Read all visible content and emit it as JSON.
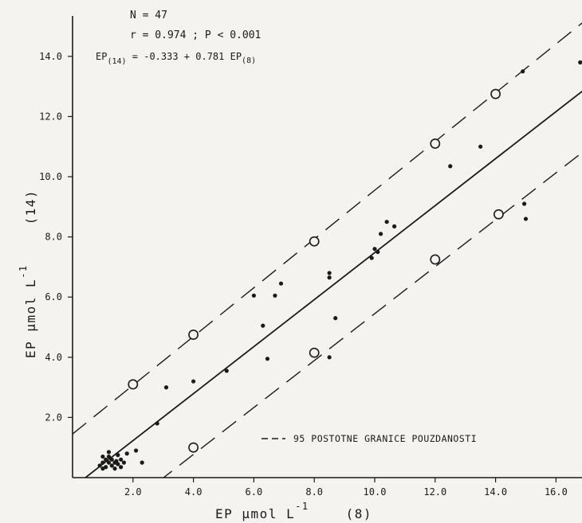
{
  "chart_data": {
    "type": "scatter",
    "annotations": {
      "n": "N = 47",
      "stats": "r = 0.974  ;  P < 0.001",
      "equation_lhs": "EP",
      "equation_lhs_sub": "(14)",
      "equation_rhs": " = -0.333 + 0.781  EP",
      "equation_rhs_sub": "(8)"
    },
    "xlabel": "EP  µmol   L",
    "xlabel_sup": "-1",
    "xlabel_suffix": "(8)",
    "ylabel": "EP  µmol   L",
    "ylabel_sup": "-1",
    "ylabel_suffix": "(14)",
    "xlim": [
      0,
      17
    ],
    "ylim": [
      0,
      15
    ],
    "x_ticks": [
      "2.0",
      "4.0",
      "6.0",
      "8.0",
      "10.0",
      "12.0",
      "14.0",
      "16.0"
    ],
    "y_ticks": [
      "2.0",
      "4.0",
      "6.0",
      "8.0",
      "10.0",
      "12.0",
      "14.0"
    ],
    "legend": {
      "label": "95  POSTOTNE  GRANICE  POUZDANOSTI",
      "placement": "bottom-right"
    },
    "regression": {
      "intercept": -0.333,
      "slope": 0.781
    },
    "confidence_lines": [
      {
        "intercept": 1.45,
        "slope": 0.81
      },
      {
        "intercept": -2.35,
        "slope": 0.78
      }
    ],
    "points": [
      [
        0.9,
        0.4
      ],
      [
        1.0,
        0.5
      ],
      [
        1.0,
        0.3
      ],
      [
        1.1,
        0.6
      ],
      [
        1.1,
        0.35
      ],
      [
        1.2,
        0.5
      ],
      [
        1.2,
        0.7
      ],
      [
        1.3,
        0.4
      ],
      [
        1.3,
        0.6
      ],
      [
        1.4,
        0.5
      ],
      [
        1.4,
        0.3
      ],
      [
        1.5,
        0.75
      ],
      [
        1.5,
        0.45
      ],
      [
        1.6,
        0.6
      ],
      [
        1.6,
        0.35
      ],
      [
        1.7,
        0.5
      ],
      [
        1.0,
        0.7
      ],
      [
        1.2,
        0.85
      ],
      [
        1.8,
        0.8
      ],
      [
        2.1,
        0.9
      ],
      [
        2.3,
        0.5
      ],
      [
        2.8,
        1.8
      ],
      [
        3.1,
        3.0
      ],
      [
        4.0,
        3.2
      ],
      [
        5.1,
        3.55
      ],
      [
        6.0,
        6.05
      ],
      [
        6.3,
        5.05
      ],
      [
        6.45,
        3.95
      ],
      [
        6.7,
        6.05
      ],
      [
        6.9,
        6.45
      ],
      [
        8.5,
        6.8
      ],
      [
        8.5,
        6.65
      ],
      [
        8.5,
        4.0
      ],
      [
        8.7,
        5.3
      ],
      [
        9.9,
        7.3
      ],
      [
        10.0,
        7.6
      ],
      [
        10.1,
        7.5
      ],
      [
        10.2,
        8.1
      ],
      [
        10.4,
        8.5
      ],
      [
        10.65,
        8.35
      ],
      [
        12.5,
        10.35
      ],
      [
        13.5,
        11.0
      ],
      [
        14.9,
        13.5
      ],
      [
        14.95,
        9.1
      ],
      [
        15.0,
        8.6
      ],
      [
        16.8,
        13.8
      ],
      [
        1.45,
        0.55
      ]
    ],
    "outlier_markers": [
      [
        2.0,
        3.1
      ],
      [
        4.0,
        4.75
      ],
      [
        4.0,
        1.0
      ],
      [
        8.0,
        7.85
      ],
      [
        8.0,
        4.15
      ],
      [
        12.0,
        11.1
      ],
      [
        12.0,
        7.25
      ],
      [
        14.0,
        12.75
      ],
      [
        14.1,
        8.75
      ]
    ]
  }
}
